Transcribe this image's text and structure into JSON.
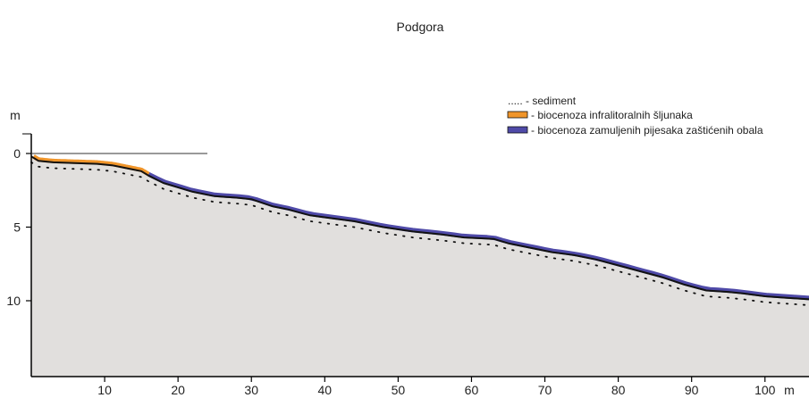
{
  "chart_data": {
    "type": "area",
    "title": "Podgora",
    "x_unit_label": "m",
    "y_unit_label": "m",
    "xlim": [
      0,
      106
    ],
    "ylim": [
      0,
      15
    ],
    "y_inverted": true,
    "x_ticks": [
      10,
      20,
      30,
      40,
      50,
      60,
      70,
      80,
      90,
      100
    ],
    "y_ticks": [
      0,
      5,
      10
    ],
    "sea_level_line": {
      "y": 0,
      "x_from": 0,
      "x_to": 24
    },
    "legend": [
      {
        "key": "sediment",
        "label": "..... - sediment",
        "color": "#222222"
      },
      {
        "key": "gravel",
        "label": "- biocenoza infralitoralnih šljunaka",
        "color": "#f0952a"
      },
      {
        "key": "sand",
        "label": "- biocenoza zamuljenih pijesaka zaštićenih obala",
        "color": "#4f4aa8"
      }
    ],
    "series": [
      {
        "name": "bottom profile",
        "x": [
          0,
          1,
          3,
          6,
          9,
          11,
          13,
          15,
          16,
          18,
          20,
          22,
          25,
          28,
          30,
          33,
          35,
          38,
          41,
          44,
          48,
          52,
          56,
          59,
          61,
          63,
          65,
          68,
          71,
          74,
          77,
          80,
          83,
          86,
          89,
          92,
          95,
          97,
          100,
          103,
          106
        ],
        "y": [
          0.2,
          0.5,
          0.6,
          0.65,
          0.7,
          0.8,
          1.0,
          1.2,
          1.5,
          2.0,
          2.3,
          2.6,
          2.9,
          3.0,
          3.1,
          3.6,
          3.8,
          4.2,
          4.4,
          4.6,
          5.0,
          5.3,
          5.5,
          5.7,
          5.75,
          5.8,
          6.1,
          6.4,
          6.7,
          6.9,
          7.2,
          7.6,
          8.0,
          8.4,
          8.9,
          9.3,
          9.4,
          9.5,
          9.7,
          9.8,
          9.9
        ]
      },
      {
        "name": "sediment",
        "offset": 0.4
      }
    ],
    "biocenosis_segments": [
      {
        "key": "gravel",
        "x_from": 0.3,
        "x_to": 16
      },
      {
        "key": "sand",
        "x_from": 16,
        "x_to": 106
      }
    ],
    "colors": {
      "area_fill": "#e1dfdd",
      "profile_line": "#111111",
      "axis": "#000000"
    }
  }
}
